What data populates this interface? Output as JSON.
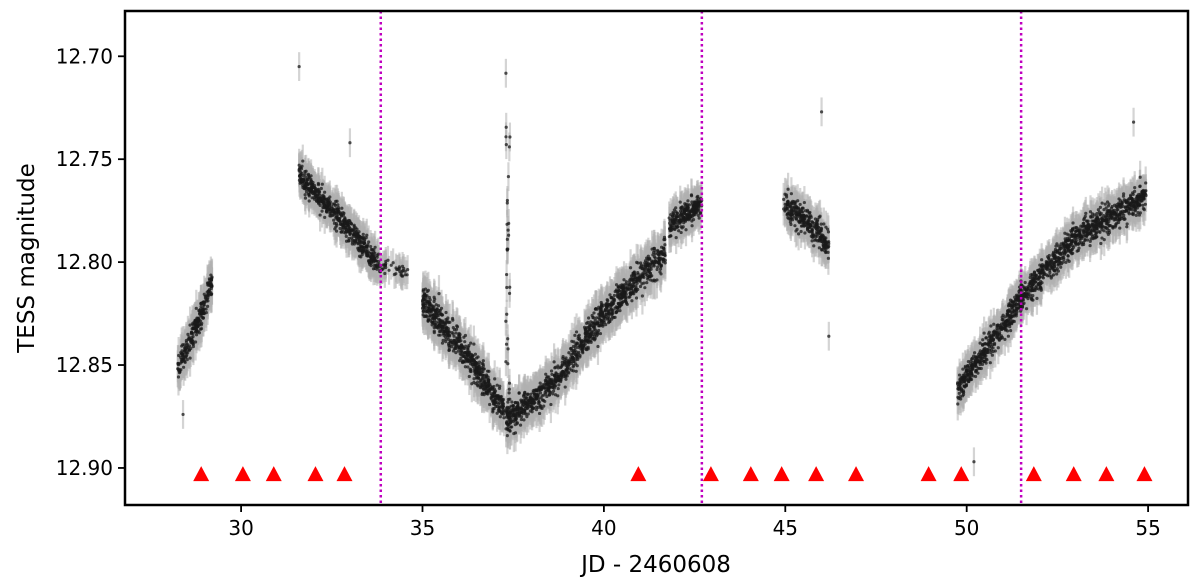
{
  "chart_data": {
    "type": "scatter",
    "xlabel": "JD - 2460608",
    "ylabel": "TESS magnitude",
    "xlim": [
      26.8,
      56.1
    ],
    "ylim": [
      12.918,
      12.678
    ],
    "y_inverted": true,
    "xticks": [
      30,
      35,
      40,
      45,
      50,
      55
    ],
    "xtick_labels": [
      "30",
      "35",
      "40",
      "45",
      "50",
      "55"
    ],
    "yticks": [
      12.7,
      12.75,
      12.8,
      12.85,
      12.9
    ],
    "ytick_labels": [
      "12.70",
      "12.75",
      "12.80",
      "12.85",
      "12.90"
    ],
    "grid": false,
    "series": [
      {
        "kind": "light-curve",
        "marker": "point with error bar",
        "color": "#1a1a1a",
        "errorbar_color": "#b0b0b0",
        "segments": [
          {
            "x_range": [
              28.25,
              29.2
            ],
            "trend": [
              [
                28.25,
                12.852
              ],
              [
                28.8,
                12.83
              ],
              [
                29.2,
                12.81
              ]
            ],
            "scatter": 0.012,
            "error": 0.009,
            "n": 230
          },
          {
            "x_range": [
              31.6,
              33.8
            ],
            "trend": [
              [
                31.6,
                12.758
              ],
              [
                32.7,
                12.778
              ],
              [
                33.8,
                12.802
              ]
            ],
            "scatter": 0.011,
            "error": 0.008,
            "n": 520
          },
          {
            "x_range": [
              33.8,
              34.6
            ],
            "trend": [
              [
                33.8,
                12.802
              ],
              [
                34.6,
                12.805
              ]
            ],
            "scatter": 0.007,
            "error": 0.007,
            "n": 40
          },
          {
            "x_range": [
              35.0,
              37.25
            ],
            "trend": [
              [
                35.0,
                12.818
              ],
              [
                36.2,
                12.845
              ],
              [
                37.25,
                12.872
              ]
            ],
            "scatter": 0.013,
            "error": 0.009,
            "n": 600
          },
          {
            "x_range": [
              37.3,
              41.7
            ],
            "trend": [
              [
                37.3,
                12.876
              ],
              [
                38.5,
                12.862
              ],
              [
                40.0,
                12.825
              ],
              [
                41.7,
                12.795
              ]
            ],
            "scatter": 0.013,
            "error": 0.009,
            "n": 1050
          },
          {
            "x_range": [
              41.8,
              42.7
            ],
            "trend": [
              [
                41.8,
                12.782
              ],
              [
                42.7,
                12.772
              ]
            ],
            "scatter": 0.01,
            "error": 0.008,
            "n": 230
          },
          {
            "x_range": [
              44.95,
              46.2
            ],
            "trend": [
              [
                44.95,
                12.772
              ],
              [
                45.6,
                12.78
              ],
              [
                46.2,
                12.792
              ]
            ],
            "scatter": 0.012,
            "error": 0.008,
            "n": 290
          },
          {
            "x_range": [
              49.75,
              54.95
            ],
            "trend": [
              [
                49.75,
                12.862
              ],
              [
                50.3,
                12.848
              ],
              [
                51.5,
                12.818
              ],
              [
                53.0,
                12.788
              ],
              [
                54.95,
                12.768
              ]
            ],
            "scatter": 0.012,
            "error": 0.008,
            "n": 1250
          }
        ],
        "features": [
          {
            "name": "flare",
            "x": 37.35,
            "y_peak": 12.708,
            "y_base": 12.876
          }
        ],
        "outliers": [
          [
            28.4,
            12.874
          ],
          [
            31.6,
            12.705
          ],
          [
            46.2,
            12.836
          ],
          [
            50.2,
            12.897
          ],
          [
            33.0,
            12.742
          ],
          [
            46.0,
            12.727
          ],
          [
            54.6,
            12.732
          ]
        ]
      },
      {
        "kind": "markers",
        "marker": "triangle-up",
        "color": "#ff0000",
        "y": 12.903,
        "x": [
          28.9,
          30.05,
          30.9,
          32.05,
          32.85,
          40.95,
          42.95,
          44.05,
          44.9,
          45.85,
          46.95,
          48.95,
          49.85,
          51.85,
          52.95,
          53.85,
          54.9
        ]
      },
      {
        "kind": "vertical-lines",
        "style": "dotted",
        "color": "#bf00bf",
        "x": [
          33.85,
          42.7,
          51.5
        ]
      }
    ]
  }
}
